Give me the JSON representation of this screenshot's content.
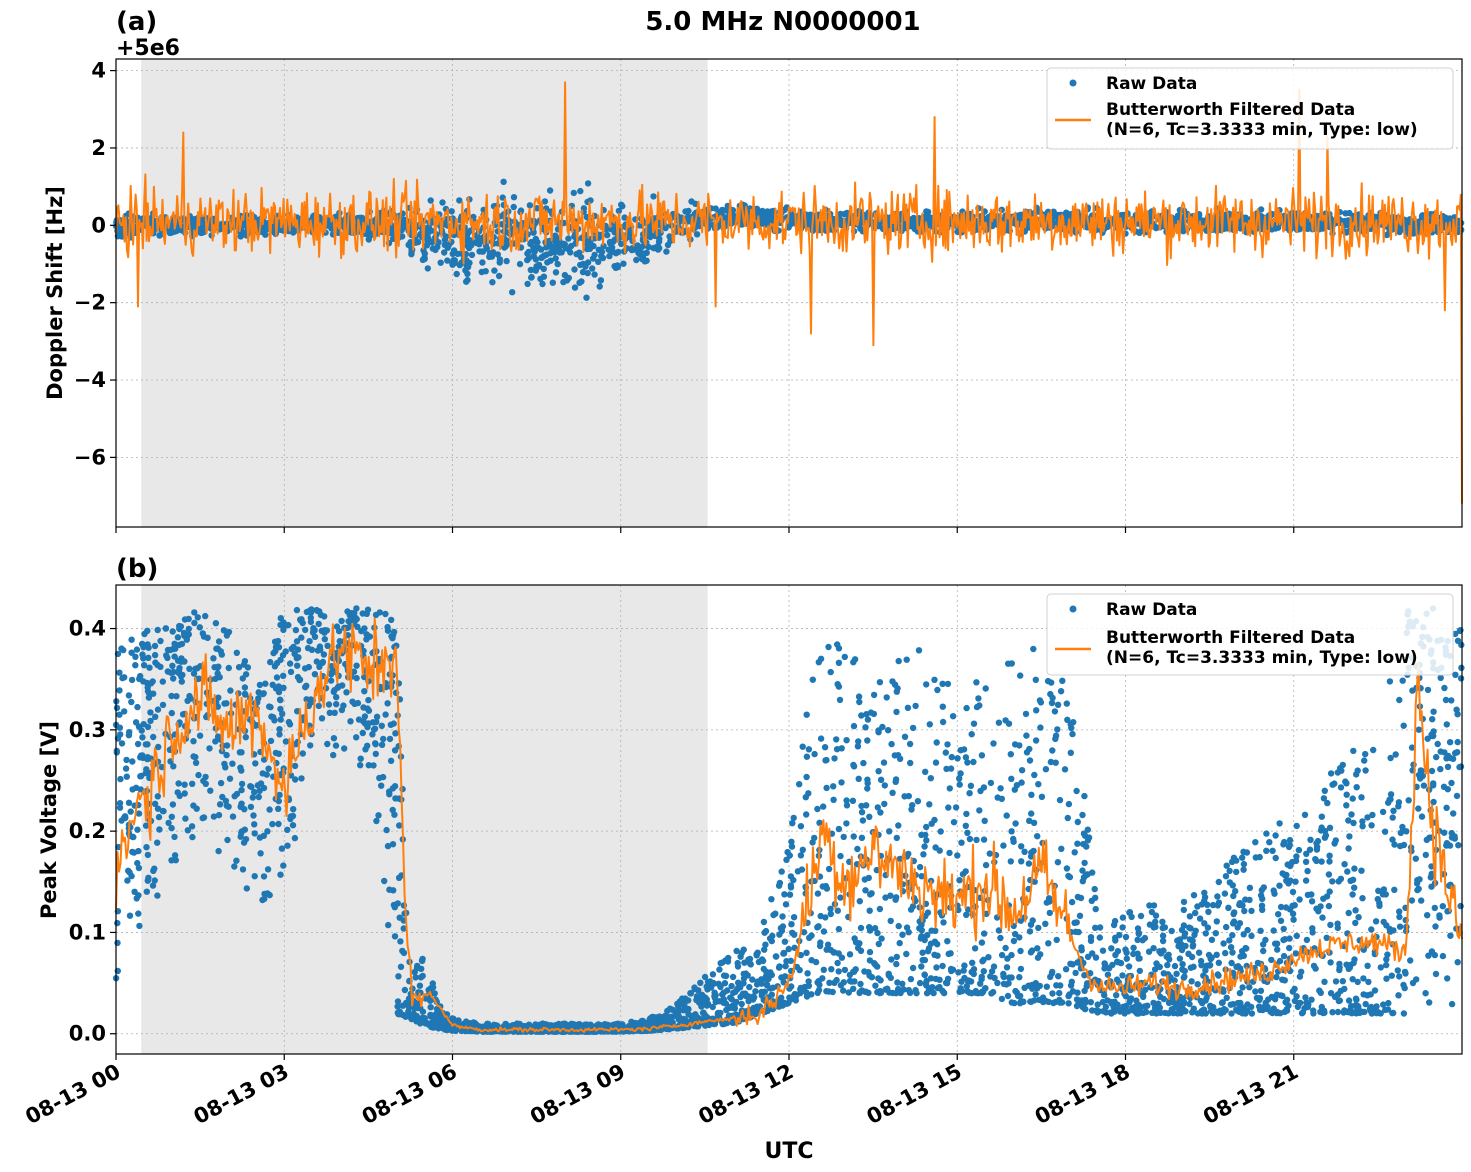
{
  "figure": {
    "title": "5.0 MHz N0000001",
    "xlabel": "UTC",
    "x_tick_labels": [
      "08-13 00",
      "08-13 03",
      "08-13 06",
      "08-13 09",
      "08-13 12",
      "08-13 15",
      "08-13 18",
      "08-13 21"
    ],
    "colors": {
      "raw": "#1f77b4",
      "filtered": "#ff7f0e",
      "shade": "#e8e8e8",
      "grid": "#b0b0b0"
    }
  },
  "chart_data": [
    {
      "type": "scatter",
      "panel_label": "(a)",
      "ylabel": "Doppler Shift [Hz]",
      "offset_label": "+5e6",
      "y_offset": 5000000,
      "xlim": [
        0,
        24
      ],
      "ylim": [
        -7.8,
        4.3
      ],
      "x_unit": "hours UTC on 08-13",
      "x_ticks": [
        0,
        3,
        6,
        9,
        12,
        15,
        18,
        21
      ],
      "y_ticks": [
        4,
        2,
        0,
        -2,
        -4,
        -6
      ],
      "y_tick_labels": [
        "4",
        "2",
        "0",
        "−2",
        "−4",
        "−6"
      ],
      "shaded_span": [
        0.45,
        10.55
      ],
      "grid": true,
      "legend_position": "top-right",
      "series": [
        {
          "name": "Raw Data",
          "kind": "points",
          "x": [
            0,
            0.5,
            1,
            1.5,
            2,
            2.5,
            3,
            3.5,
            4,
            4.5,
            5,
            5.5,
            6,
            6.5,
            7,
            7.5,
            8,
            8.5,
            9,
            9.5,
            10,
            10.5,
            11,
            11.5,
            12,
            12.5,
            13,
            13.5,
            14,
            14.5,
            15,
            15.5,
            16,
            16.5,
            17,
            17.5,
            18,
            18.5,
            19,
            19.5,
            20,
            20.5,
            21,
            21.5,
            22,
            22.5,
            23,
            23.5,
            24
          ],
          "center": [
            0,
            0,
            0,
            0,
            0,
            0,
            0,
            0,
            0,
            0,
            -0.1,
            -0.2,
            -0.3,
            -0.4,
            -0.4,
            -0.4,
            -0.4,
            -0.4,
            -0.3,
            -0.2,
            0,
            0.2,
            0.2,
            0.2,
            0.1,
            0.1,
            0.1,
            0.1,
            0.1,
            0.1,
            0.1,
            0.1,
            0.1,
            0.1,
            0.1,
            0.1,
            0.1,
            0.1,
            0.1,
            0.1,
            0.1,
            0.1,
            0.1,
            0.1,
            0.1,
            0.1,
            0,
            0,
            0
          ],
          "spread": [
            0.5,
            0.45,
            0.45,
            0.45,
            0.45,
            0.45,
            0.45,
            0.45,
            0.45,
            0.5,
            0.9,
            1.2,
            1.5,
            1.8,
            1.9,
            2.0,
            2.1,
            2.0,
            1.8,
            1.4,
            0.9,
            0.6,
            0.5,
            0.45,
            0.45,
            0.45,
            0.45,
            0.45,
            0.45,
            0.45,
            0.45,
            0.45,
            0.45,
            0.45,
            0.45,
            0.45,
            0.45,
            0.45,
            0.45,
            0.45,
            0.45,
            0.45,
            0.45,
            0.45,
            0.45,
            0.45,
            0.45,
            0.45,
            0.45
          ]
        },
        {
          "name": "Butterworth Filtered Data\n(N=6, Tc=3.3333 min, Type: low)",
          "kind": "line",
          "amplitude": 1.35,
          "spikes": [
            [
              0.4,
              -2.1
            ],
            [
              1.2,
              2.4
            ],
            [
              8.0,
              3.7
            ],
            [
              10.7,
              -2.1
            ],
            [
              12.4,
              -2.8
            ],
            [
              13.5,
              -3.1
            ],
            [
              14.6,
              2.8
            ],
            [
              21.1,
              3.5
            ],
            [
              21.6,
              2.3
            ],
            [
              23.7,
              -2.2
            ],
            [
              24.0,
              -7.2
            ]
          ]
        }
      ]
    },
    {
      "type": "scatter",
      "panel_label": "(b)",
      "ylabel": "Peak Voltage [V]",
      "xlim": [
        0,
        24
      ],
      "ylim": [
        -0.02,
        0.443
      ],
      "x_unit": "hours UTC on 08-13",
      "x_ticks": [
        0,
        3,
        6,
        9,
        12,
        15,
        18,
        21
      ],
      "y_ticks": [
        0.0,
        0.1,
        0.2,
        0.3,
        0.4
      ],
      "y_tick_labels": [
        "0.0",
        "0.1",
        "0.2",
        "0.3",
        "0.4"
      ],
      "shaded_span": [
        0.45,
        10.55
      ],
      "grid": true,
      "legend_position": "top-right",
      "series": [
        {
          "name": "Raw Data",
          "kind": "points",
          "x": [
            0,
            0.5,
            1,
            1.5,
            2,
            2.5,
            3,
            3.5,
            4,
            4.5,
            5,
            5.25,
            5.5,
            5.75,
            6,
            6.5,
            7,
            7.5,
            8,
            8.5,
            9,
            9.5,
            10,
            10.5,
            11,
            11.5,
            12,
            12.5,
            13,
            13.5,
            14,
            14.5,
            15,
            15.5,
            16,
            16.5,
            17,
            17.5,
            18,
            18.5,
            19,
            19.5,
            20,
            20.5,
            21,
            21.5,
            22,
            22.5,
            23,
            23.5,
            24
          ],
          "low": [
            0.03,
            0.1,
            0.15,
            0.2,
            0.16,
            0.1,
            0.15,
            0.25,
            0.28,
            0.25,
            0.02,
            0.015,
            0.008,
            0.005,
            0.003,
            0.002,
            0.002,
            0.002,
            0.002,
            0.002,
            0.002,
            0.003,
            0.005,
            0.008,
            0.01,
            0.02,
            0.03,
            0.04,
            0.04,
            0.04,
            0.04,
            0.04,
            0.04,
            0.04,
            0.03,
            0.03,
            0.03,
            0.02,
            0.02,
            0.02,
            0.02,
            0.02,
            0.02,
            0.02,
            0.02,
            0.02,
            0.02,
            0.02,
            0.02,
            0.02,
            0.02
          ],
          "high": [
            0.38,
            0.4,
            0.41,
            0.42,
            0.4,
            0.35,
            0.42,
            0.42,
            0.42,
            0.42,
            0.42,
            0.06,
            0.08,
            0.03,
            0.015,
            0.01,
            0.01,
            0.01,
            0.01,
            0.01,
            0.01,
            0.015,
            0.03,
            0.06,
            0.08,
            0.1,
            0.2,
            0.4,
            0.38,
            0.4,
            0.38,
            0.38,
            0.38,
            0.35,
            0.38,
            0.38,
            0.38,
            0.12,
            0.12,
            0.13,
            0.13,
            0.15,
            0.18,
            0.2,
            0.22,
            0.25,
            0.28,
            0.3,
            0.42,
            0.42,
            0.4
          ]
        },
        {
          "name": "Butterworth Filtered Data\n(N=6, Tc=3.3333 min, Type: low)",
          "kind": "line",
          "x": [
            0,
            0.3,
            0.6,
            1,
            1.5,
            2,
            2.5,
            3,
            3.5,
            4,
            4.5,
            5,
            5.15,
            5.3,
            5.6,
            6,
            6.5,
            7,
            8,
            9,
            9.5,
            10,
            10.5,
            11,
            11.5,
            12,
            12.3,
            12.6,
            13,
            13.5,
            14,
            14.5,
            15,
            15.5,
            16,
            16.5,
            17,
            17.3,
            17.6,
            18,
            18.5,
            19,
            19.5,
            20,
            20.5,
            21,
            21.5,
            22,
            22.5,
            23,
            23.2,
            23.5,
            24
          ],
          "y": [
            0.15,
            0.22,
            0.24,
            0.3,
            0.33,
            0.3,
            0.32,
            0.24,
            0.33,
            0.38,
            0.36,
            0.38,
            0.12,
            0.03,
            0.04,
            0.008,
            0.004,
            0.004,
            0.004,
            0.004,
            0.005,
            0.008,
            0.012,
            0.015,
            0.02,
            0.05,
            0.12,
            0.2,
            0.15,
            0.18,
            0.16,
            0.14,
            0.13,
            0.15,
            0.12,
            0.16,
            0.1,
            0.06,
            0.045,
            0.045,
            0.05,
            0.045,
            0.05,
            0.055,
            0.06,
            0.075,
            0.085,
            0.09,
            0.09,
            0.08,
            0.35,
            0.2,
            0.09
          ],
          "wiggle": 0.04
        }
      ]
    }
  ]
}
